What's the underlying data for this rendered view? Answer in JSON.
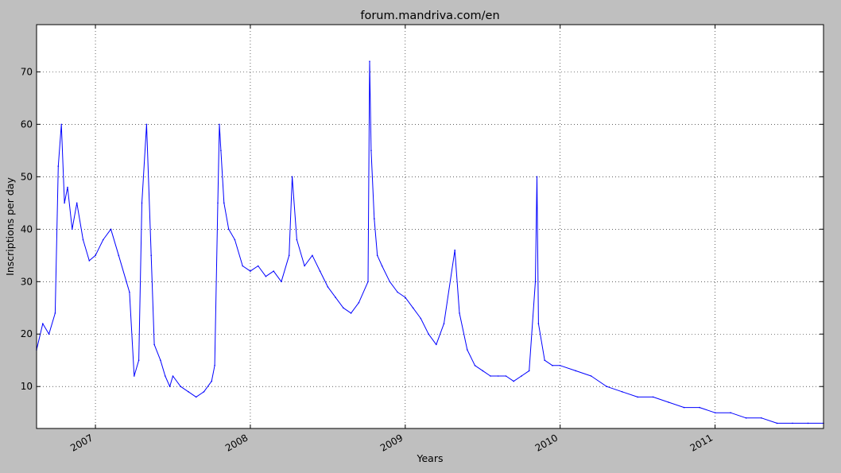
{
  "chart_data": {
    "type": "line",
    "title": "forum.mandriva.com/en",
    "xlabel": "Years",
    "ylabel": "Inscriptions per day",
    "xlim": [
      2006.62,
      2011.7
    ],
    "ylim": [
      2,
      79
    ],
    "xticks": [
      {
        "value": 2007,
        "label": "2007"
      },
      {
        "value": 2008,
        "label": "2008"
      },
      {
        "value": 2009,
        "label": "2009"
      },
      {
        "value": 2010,
        "label": "2010"
      },
      {
        "value": 2011,
        "label": "2011"
      }
    ],
    "yticks": [
      {
        "value": 10,
        "label": "10"
      },
      {
        "value": 20,
        "label": "20"
      },
      {
        "value": 30,
        "label": "30"
      },
      {
        "value": 40,
        "label": "40"
      },
      {
        "value": 50,
        "label": "50"
      },
      {
        "value": 60,
        "label": "60"
      },
      {
        "value": 70,
        "label": "70"
      }
    ],
    "grid": true,
    "series": [
      {
        "name": "inscriptions",
        "color": "#0000ff",
        "x": [
          2006.62,
          2006.66,
          2006.7,
          2006.74,
          2006.76,
          2006.78,
          2006.8,
          2006.82,
          2006.85,
          2006.88,
          2006.92,
          2006.96,
          2007.0,
          2007.05,
          2007.1,
          2007.15,
          2007.2,
          2007.22,
          2007.25,
          2007.28,
          2007.3,
          2007.33,
          2007.36,
          2007.38,
          2007.42,
          2007.45,
          2007.48,
          2007.5,
          2007.55,
          2007.6,
          2007.65,
          2007.7,
          2007.75,
          2007.77,
          2007.79,
          2007.8,
          2007.81,
          2007.83,
          2007.86,
          2007.9,
          2007.95,
          2008.0,
          2008.05,
          2008.1,
          2008.15,
          2008.2,
          2008.25,
          2008.27,
          2008.3,
          2008.35,
          2008.4,
          2008.45,
          2008.5,
          2008.55,
          2008.6,
          2008.65,
          2008.7,
          2008.76,
          2008.77,
          2008.78,
          2008.8,
          2008.82,
          2008.85,
          2008.9,
          2008.95,
          2009.0,
          2009.05,
          2009.1,
          2009.15,
          2009.2,
          2009.25,
          2009.32,
          2009.35,
          2009.4,
          2009.45,
          2009.5,
          2009.55,
          2009.6,
          2009.65,
          2009.7,
          2009.75,
          2009.8,
          2009.84,
          2009.85,
          2009.86,
          2009.9,
          2009.95,
          2010.0,
          2010.1,
          2010.2,
          2010.3,
          2010.4,
          2010.5,
          2010.6,
          2010.7,
          2010.8,
          2010.9,
          2011.0,
          2011.1,
          2011.2,
          2011.3,
          2011.4,
          2011.5,
          2011.6,
          2011.7
        ],
        "y": [
          17,
          22,
          20,
          24,
          52,
          60,
          45,
          48,
          40,
          45,
          38,
          34,
          35,
          38,
          40,
          35,
          30,
          28,
          12,
          15,
          45,
          60,
          35,
          18,
          15,
          12,
          10,
          12,
          10,
          9,
          8,
          9,
          11,
          14,
          45,
          60,
          55,
          45,
          40,
          38,
          33,
          32,
          33,
          31,
          32,
          30,
          35,
          50,
          38,
          33,
          35,
          32,
          29,
          27,
          25,
          24,
          26,
          30,
          72,
          55,
          42,
          35,
          33,
          30,
          28,
          27,
          25,
          23,
          20,
          18,
          22,
          36,
          24,
          17,
          14,
          13,
          12,
          12,
          12,
          11,
          12,
          13,
          30,
          50,
          22,
          15,
          14,
          14,
          13,
          12,
          10,
          9,
          8,
          8,
          7,
          6,
          6,
          5,
          5,
          4,
          4,
          3,
          3,
          3,
          3
        ]
      }
    ]
  }
}
